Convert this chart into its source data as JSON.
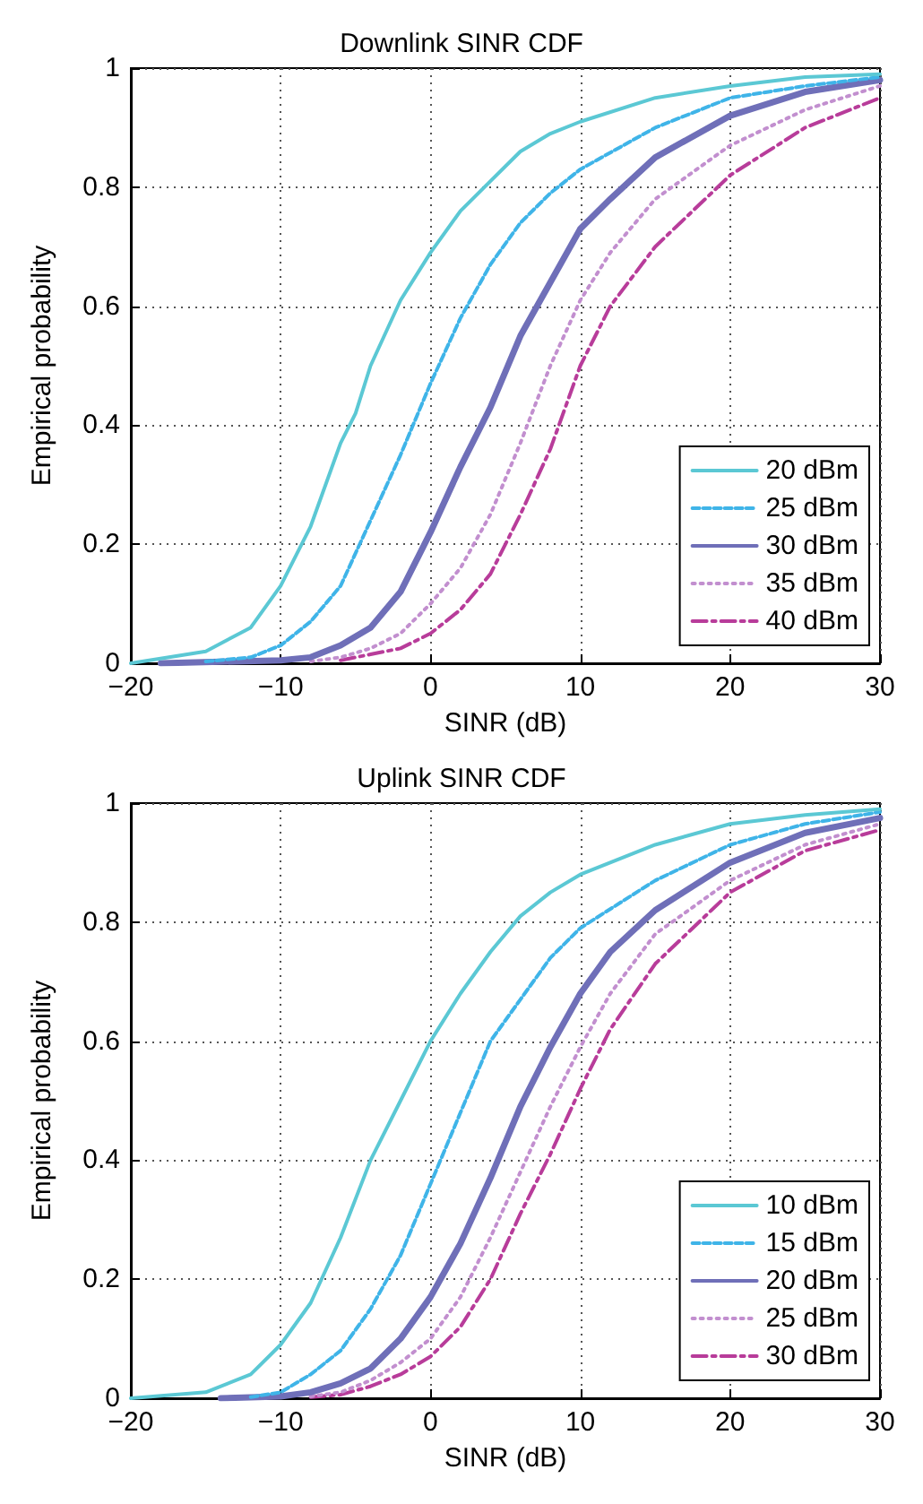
{
  "chart_data": [
    {
      "type": "line",
      "title": "Downlink SINR CDF",
      "xlabel": "SINR (dB)",
      "ylabel": "Empirical probability",
      "xlim": [
        -20,
        30
      ],
      "xticks": [
        -20,
        -10,
        0,
        10,
        20,
        30
      ],
      "ylim": [
        0,
        1
      ],
      "yticks": [
        0,
        0.2,
        0.4,
        0.6,
        0.8,
        1
      ],
      "grid": true,
      "legend": "bottom right",
      "marker": "none",
      "series": [
        {
          "name": "20 dBm",
          "color": "#5bc8d4",
          "line_style": "solid",
          "x": [
            -20,
            -15,
            -12,
            -10,
            -8,
            -6,
            -5,
            -4,
            -2,
            0,
            2,
            4,
            6,
            8,
            10,
            15,
            20,
            25,
            30
          ],
          "values": [
            0,
            0.02,
            0.06,
            0.13,
            0.23,
            0.37,
            0.42,
            0.5,
            0.61,
            0.69,
            0.76,
            0.81,
            0.86,
            0.89,
            0.91,
            0.95,
            0.97,
            0.985,
            0.99
          ]
        },
        {
          "name": "25 dBm",
          "color": "#3fb4e8",
          "line_style": "dashed",
          "x": [
            -15,
            -12,
            -10,
            -8,
            -6,
            -4,
            -2,
            0,
            2,
            4,
            6,
            8,
            10,
            15,
            20,
            25,
            30
          ],
          "values": [
            0.003,
            0.01,
            0.03,
            0.07,
            0.13,
            0.24,
            0.35,
            0.47,
            0.58,
            0.67,
            0.74,
            0.79,
            0.83,
            0.9,
            0.95,
            0.97,
            0.985
          ]
        },
        {
          "name": "30 dBm",
          "color": "#6f6fb8",
          "line_style": "solid",
          "x": [
            -18,
            -10,
            -8,
            -6,
            -4,
            -2,
            0,
            2,
            4,
            6,
            8,
            10,
            12,
            15,
            20,
            25,
            30
          ],
          "values": [
            0,
            0.005,
            0.01,
            0.03,
            0.06,
            0.12,
            0.22,
            0.33,
            0.43,
            0.55,
            0.64,
            0.73,
            0.78,
            0.85,
            0.92,
            0.96,
            0.98
          ]
        },
        {
          "name": "35 dBm",
          "color": "#c28fcf",
          "line_style": "dotted",
          "x": [
            -8,
            -6,
            -4,
            -2,
            0,
            2,
            4,
            6,
            8,
            10,
            12,
            15,
            20,
            25,
            30
          ],
          "values": [
            0.003,
            0.01,
            0.025,
            0.05,
            0.1,
            0.16,
            0.25,
            0.37,
            0.5,
            0.61,
            0.69,
            0.78,
            0.87,
            0.93,
            0.97
          ]
        },
        {
          "name": "40 dBm",
          "color": "#b83c9a",
          "line_style": "dashdot",
          "x": [
            -6,
            -4,
            -2,
            0,
            2,
            4,
            6,
            8,
            10,
            12,
            15,
            20,
            25,
            30
          ],
          "values": [
            0.005,
            0.015,
            0.025,
            0.05,
            0.09,
            0.15,
            0.25,
            0.36,
            0.5,
            0.6,
            0.7,
            0.82,
            0.9,
            0.95
          ]
        }
      ]
    },
    {
      "type": "line",
      "title": "Uplink SINR CDF",
      "xlabel": "SINR (dB)",
      "ylabel": "Empirical probability",
      "xlim": [
        -20,
        30
      ],
      "xticks": [
        -20,
        -10,
        0,
        10,
        20,
        30
      ],
      "ylim": [
        0,
        1
      ],
      "yticks": [
        0,
        0.2,
        0.4,
        0.6,
        0.8,
        1
      ],
      "grid": true,
      "legend": "bottom right",
      "marker": "none",
      "series": [
        {
          "name": "10 dBm",
          "color": "#5bc8d4",
          "line_style": "solid",
          "x": [
            -20,
            -15,
            -12,
            -10,
            -8,
            -6,
            -4,
            -2,
            0,
            2,
            4,
            6,
            8,
            10,
            15,
            20,
            25,
            30
          ],
          "values": [
            0,
            0.01,
            0.04,
            0.09,
            0.16,
            0.27,
            0.4,
            0.5,
            0.6,
            0.68,
            0.75,
            0.81,
            0.85,
            0.88,
            0.93,
            0.965,
            0.98,
            0.99
          ]
        },
        {
          "name": "15 dBm",
          "color": "#3fb4e8",
          "line_style": "dashed",
          "x": [
            -12,
            -10,
            -8,
            -6,
            -4,
            -2,
            0,
            2,
            4,
            6,
            8,
            10,
            15,
            20,
            25,
            30
          ],
          "values": [
            0.002,
            0.01,
            0.04,
            0.08,
            0.15,
            0.24,
            0.36,
            0.48,
            0.6,
            0.67,
            0.74,
            0.79,
            0.87,
            0.93,
            0.965,
            0.985
          ]
        },
        {
          "name": "20 dBm",
          "color": "#6f6fb8",
          "line_style": "solid",
          "x": [
            -14,
            -10,
            -8,
            -6,
            -4,
            -2,
            0,
            2,
            4,
            6,
            8,
            10,
            12,
            15,
            20,
            25,
            30
          ],
          "values": [
            0,
            0.003,
            0.01,
            0.025,
            0.05,
            0.1,
            0.17,
            0.26,
            0.37,
            0.49,
            0.59,
            0.68,
            0.75,
            0.82,
            0.9,
            0.95,
            0.975
          ]
        },
        {
          "name": "25 dBm",
          "color": "#c28fcf",
          "line_style": "dotted",
          "x": [
            -8,
            -6,
            -4,
            -2,
            0,
            2,
            4,
            6,
            8,
            10,
            12,
            15,
            20,
            25,
            30
          ],
          "values": [
            0.003,
            0.01,
            0.03,
            0.06,
            0.1,
            0.17,
            0.27,
            0.38,
            0.49,
            0.59,
            0.68,
            0.78,
            0.87,
            0.93,
            0.965
          ]
        },
        {
          "name": "30 dBm",
          "color": "#b83c9a",
          "line_style": "dashdot",
          "x": [
            -8,
            -6,
            -4,
            -2,
            0,
            2,
            4,
            6,
            8,
            10,
            12,
            15,
            20,
            25,
            30
          ],
          "values": [
            0.002,
            0.006,
            0.02,
            0.04,
            0.07,
            0.12,
            0.2,
            0.31,
            0.41,
            0.52,
            0.62,
            0.73,
            0.85,
            0.92,
            0.955
          ]
        }
      ]
    }
  ]
}
